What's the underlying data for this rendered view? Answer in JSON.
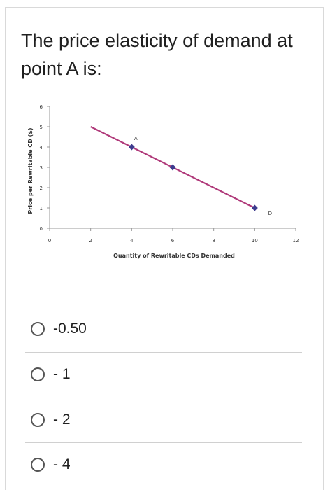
{
  "question": {
    "text": "The price elasticity of demand at point A is:"
  },
  "chart_data": {
    "type": "line",
    "xlabel": "Quantity of Rewritable CDs Demanded",
    "ylabel": "Price per Rewritable CD ($)",
    "xlim": [
      0,
      12
    ],
    "ylim": [
      0,
      6
    ],
    "x_ticks": [
      0,
      2,
      4,
      6,
      8,
      10,
      12
    ],
    "y_ticks": [
      0,
      1,
      2,
      3,
      4,
      5,
      6
    ],
    "grid": false,
    "line": {
      "x": [
        2,
        10
      ],
      "y": [
        5,
        1
      ],
      "color": "#b03a7a"
    },
    "markers": [
      {
        "x": 4,
        "y": 4
      },
      {
        "x": 6,
        "y": 3
      },
      {
        "x": 10,
        "y": 1
      }
    ],
    "annotations": [
      {
        "text": "A",
        "x": 4,
        "y": 4
      },
      {
        "text": "D",
        "x": 10,
        "y": 1
      }
    ]
  },
  "options": [
    {
      "label": "-0.50"
    },
    {
      "label": "- 1"
    },
    {
      "label": "- 2"
    },
    {
      "label": "- 4"
    }
  ]
}
